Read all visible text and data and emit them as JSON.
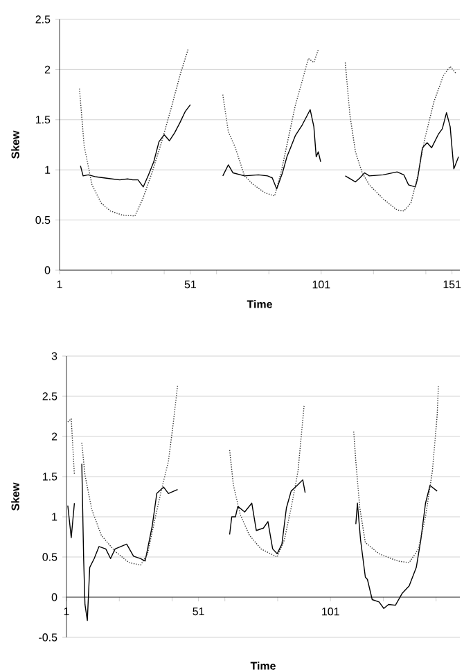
{
  "chart_data": [
    {
      "type": "line",
      "xlabel": "Time",
      "ylabel": "Skew",
      "xlim": [
        1,
        154
      ],
      "ylim": [
        0,
        2.5
      ],
      "xticks": [
        1,
        {
          "value": 21,
          "label": null
        },
        {
          "value": 41,
          "label": null
        },
        51,
        {
          "value": 61,
          "label": null
        },
        {
          "value": 81,
          "label": null
        },
        101,
        {
          "value": 121,
          "label": null
        },
        {
          "value": 141,
          "label": null
        },
        151
      ],
      "yticks": [
        0,
        0.5,
        1,
        1.5,
        2,
        2.5
      ],
      "grid": "y",
      "marker": "none",
      "series": [
        {
          "color": "#000000",
          "line_style": "solid",
          "x": [
            9,
            10,
            12,
            15,
            18,
            21,
            24,
            27,
            29,
            31,
            33,
            35,
            37,
            39,
            41,
            43,
            45,
            47,
            49,
            51,
            57,
            63.4,
            65.5,
            67.3,
            71.7,
            77,
            80.5,
            82.3,
            84,
            86.2,
            87.9,
            89.3,
            91.1,
            93.8,
            96.8,
            98.2,
            99.1,
            99.9,
            100.8,
            105,
            110.2,
            114.1,
            115.8,
            117.6,
            119.4,
            124.7,
            130,
            132.6,
            134.4,
            137,
            137.9,
            139.7,
            141.5,
            143.2,
            145.9,
            147.3,
            148.9,
            150.3,
            151.7,
            153.5
          ],
          "values": [
            1.04,
            0.94,
            0.95,
            0.93,
            0.92,
            0.91,
            0.9,
            0.91,
            0.9,
            0.9,
            0.83,
            0.95,
            1.08,
            1.28,
            1.35,
            1.29,
            1.37,
            1.47,
            1.58,
            1.65,
            null,
            0.94,
            1.05,
            0.97,
            0.94,
            0.95,
            0.94,
            0.92,
            0.81,
            0.97,
            1.13,
            1.22,
            1.34,
            1.45,
            1.6,
            1.43,
            1.13,
            1.18,
            1.08,
            null,
            0.94,
            0.88,
            0.92,
            0.97,
            0.94,
            0.95,
            0.98,
            0.95,
            0.85,
            0.83,
            0.92,
            1.22,
            1.27,
            1.22,
            1.36,
            1.41,
            1.57,
            1.43,
            1.01,
            1.13
          ]
        },
        {
          "color": "#333333",
          "line_style": "dotted",
          "x": [
            8.6,
            10.4,
            13.4,
            16.9,
            20.4,
            24.9,
            29.8,
            32.8,
            36.3,
            39.9,
            43.4,
            47,
            50.1,
            57,
            63.4,
            65.5,
            68.2,
            71.7,
            75.2,
            79.6,
            83.2,
            85.8,
            88.4,
            91.1,
            93.8,
            96.1,
            98.2,
            99.9,
            105,
            110.2,
            112,
            114.1,
            116.7,
            119.4,
            124.7,
            130,
            132.6,
            135.3,
            137.9,
            140.6,
            144.1,
            147.7,
            150.3,
            152.6
          ],
          "values": [
            1.81,
            1.24,
            0.85,
            0.67,
            0.59,
            0.55,
            0.54,
            0.71,
            0.97,
            1.27,
            1.59,
            1.94,
            2.2,
            null,
            1.75,
            1.38,
            1.22,
            0.94,
            0.85,
            0.77,
            0.74,
            0.99,
            1.31,
            1.64,
            1.89,
            2.11,
            2.07,
            2.2,
            null,
            2.07,
            1.54,
            1.18,
            0.97,
            0.85,
            0.71,
            0.6,
            0.59,
            0.67,
            0.94,
            1.31,
            1.68,
            1.94,
            2.03,
            1.96
          ]
        }
      ]
    },
    {
      "type": "line",
      "xlabel": "Time",
      "ylabel": "Skew",
      "xlim": [
        1,
        150
      ],
      "ylim": [
        -0.5,
        3
      ],
      "xticks": [
        1,
        {
          "value": 21,
          "label": null
        },
        {
          "value": 41,
          "label": null
        },
        51,
        {
          "value": 61,
          "label": null
        },
        {
          "value": 81,
          "label": null
        },
        101,
        {
          "value": 121,
          "label": null
        },
        {
          "value": 141,
          "label": null
        }
      ],
      "yticks": [
        -0.5,
        0,
        0.5,
        1,
        1.5,
        2,
        2.5,
        3
      ],
      "grid": "y",
      "marker": "none",
      "series": [
        {
          "color": "#000000",
          "line_style": "solid",
          "x": [
            1.5,
            2.8,
            4,
            5.5,
            6.8,
            7.5,
            8,
            8.9,
            9.8,
            11.5,
            13.3,
            15.9,
            17.7,
            19.4,
            23.8,
            26.4,
            29.1,
            30.8,
            33.5,
            35.2,
            37.8,
            39.6,
            43.1,
            55,
            62.8,
            63.6,
            65,
            65.9,
            68.5,
            71.2,
            72.9,
            75.6,
            77.3,
            79.1,
            80.8,
            82.6,
            84.3,
            86.1,
            88.7,
            90.5,
            91.4,
            100,
            110.6,
            111.2,
            112.4,
            114.2,
            115,
            116.8,
            119.4,
            121.2,
            123,
            125.6,
            128.2,
            130.8,
            133.5,
            135.2,
            137,
            138.7,
            141.4
          ],
          "values": [
            1.14,
            0.74,
            1.17,
            null,
            1.66,
            0.48,
            -0.09,
            -0.29,
            0.37,
            0.48,
            0.63,
            0.6,
            0.48,
            0.6,
            0.66,
            0.51,
            0.48,
            0.45,
            0.89,
            1.29,
            1.37,
            1.29,
            1.34,
            null,
            0.78,
            1.0,
            1.0,
            1.13,
            1.06,
            1.17,
            0.83,
            0.86,
            0.94,
            0.6,
            0.54,
            0.66,
            1.11,
            1.32,
            1.4,
            1.46,
            1.3,
            null,
            0.91,
            1.17,
            0.71,
            0.25,
            0.22,
            -0.03,
            -0.06,
            -0.14,
            -0.09,
            -0.1,
            0.05,
            0.14,
            0.37,
            0.71,
            1.17,
            1.39,
            1.32
          ]
        },
        {
          "color": "#333333",
          "line_style": "dotted",
          "x": [
            1.5,
            2.8,
            4,
            5.5,
            6.8,
            8,
            10.6,
            14.2,
            19.4,
            24.7,
            29.1,
            31.7,
            34.3,
            37,
            39.6,
            41.4,
            43.1,
            55,
            62.8,
            64.2,
            66.8,
            70.3,
            74.7,
            80.8,
            83.5,
            86.1,
            88.7,
            91,
            100,
            109.8,
            110.6,
            112.1,
            114.2,
            119.4,
            126.4,
            130.8,
            134.3,
            137,
            139.6,
            141.4,
            141.9
          ],
          "values": [
            2.18,
            2.22,
            1.52,
            null,
            1.92,
            1.52,
            1.09,
            0.77,
            0.57,
            0.43,
            0.4,
            0.54,
            0.94,
            1.34,
            1.69,
            2.15,
            2.64,
            null,
            1.83,
            1.4,
            1.03,
            0.77,
            0.6,
            0.5,
            0.71,
            1.11,
            1.57,
            2.38,
            null,
            2.06,
            1.69,
            1.11,
            0.68,
            0.54,
            0.45,
            0.43,
            0.6,
            1.0,
            1.57,
            2.26,
            2.64
          ]
        }
      ]
    }
  ]
}
